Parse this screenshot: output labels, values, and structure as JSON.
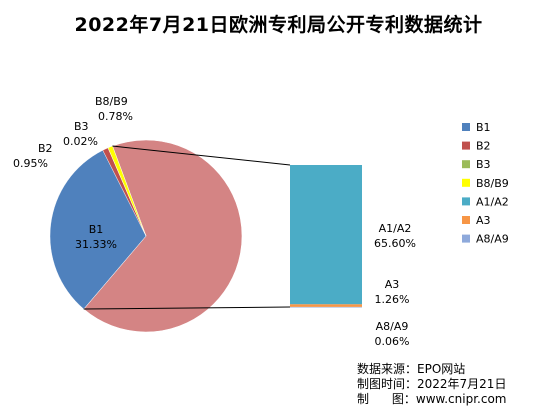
{
  "chart_data": {
    "type": "pie",
    "title": "2022年7月21日欧洲专利局公开专利数据统计",
    "categories": [
      "B1",
      "B2",
      "B3",
      "B8/B9",
      "A1/A2",
      "A3",
      "A8/A9"
    ],
    "values": [
      31.33,
      0.95,
      0.02,
      0.78,
      65.6,
      1.26,
      0.06
    ],
    "labels": [
      "31.33%",
      "0.95%",
      "0.02%",
      "0.78%",
      "65.60%",
      "1.26%",
      "0.06%"
    ],
    "colors": [
      "#4F81BD",
      "#C0504D",
      "#9BBB59",
      "#FFFF00",
      "#4BACC6",
      "#F79646",
      "#8EA9DB"
    ],
    "pie_slice_colors": [
      "#4F81BD",
      "#C0504D",
      "#9BBB59",
      "#FFFF00",
      "#D48484"
    ],
    "bar_of_pie": {
      "aggregate_label": "A1/A2 + A3 + A8/A9",
      "members": [
        "A1/A2",
        "A3",
        "A8/A9"
      ]
    },
    "legend_position": "right"
  },
  "source": {
    "line1": "数据来源：EPO网站",
    "line2": "制图时间：2022年7月21日",
    "line3": "制      图：www.cnipr.com"
  }
}
